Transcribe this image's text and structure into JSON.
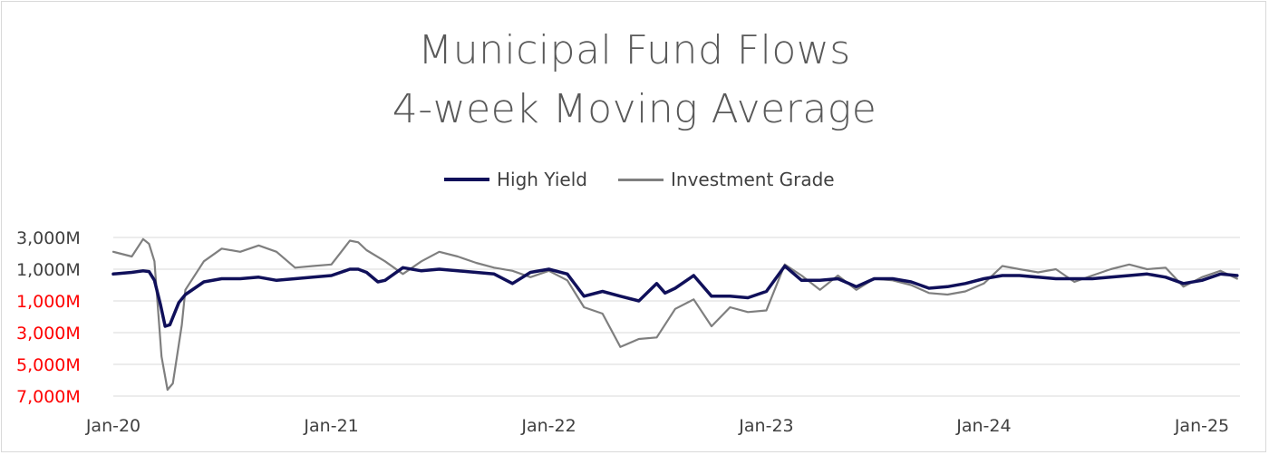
{
  "chart_data": {
    "type": "line",
    "title": "Municipal Fund Flows",
    "subtitle": "4-week Moving Average",
    "xlabel": "",
    "ylabel": "",
    "x_tick_labels": [
      "Jan-20",
      "Jan-21",
      "Jan-22",
      "Jan-23",
      "Jan-24",
      "Jan-25"
    ],
    "y_tick_labels": [
      "3,000M",
      "1,000M",
      "1,000M",
      "3,000M",
      "5,000M",
      "7,000M"
    ],
    "y_tick_values": [
      3000,
      1000,
      -1000,
      -3000,
      -5000,
      -7000
    ],
    "y_tick_negative_color": "#ff0000",
    "y_tick_positive_color": "#404040",
    "ylim": [
      -7000,
      3000
    ],
    "xlim": [
      "2020-01",
      "2025-03"
    ],
    "grid": "horizontal",
    "legend_position": "top-center",
    "series": [
      {
        "name": "High Yield",
        "color": "#10105a",
        "points": [
          [
            "2020-01",
            700
          ],
          [
            "2020-02",
            800
          ],
          [
            "2020-02-20",
            900
          ],
          [
            "2020-03-01",
            850
          ],
          [
            "2020-03-10",
            300
          ],
          [
            "2020-03-20",
            -1200
          ],
          [
            "2020-03-28",
            -2600
          ],
          [
            "2020-04-05",
            -2500
          ],
          [
            "2020-04-20",
            -1100
          ],
          [
            "2020-05",
            -600
          ],
          [
            "2020-06",
            200
          ],
          [
            "2020-07",
            400
          ],
          [
            "2020-08",
            400
          ],
          [
            "2020-09",
            500
          ],
          [
            "2020-10",
            300
          ],
          [
            "2020-11",
            400
          ],
          [
            "2020-12",
            500
          ],
          [
            "2021-01",
            600
          ],
          [
            "2021-02",
            1000
          ],
          [
            "2021-02-15",
            1000
          ],
          [
            "2021-03",
            800
          ],
          [
            "2021-03-20",
            200
          ],
          [
            "2021-04",
            300
          ],
          [
            "2021-05",
            1100
          ],
          [
            "2021-06",
            900
          ],
          [
            "2021-07",
            1000
          ],
          [
            "2021-08",
            900
          ],
          [
            "2021-09",
            800
          ],
          [
            "2021-10",
            700
          ],
          [
            "2021-11",
            100
          ],
          [
            "2021-12",
            800
          ],
          [
            "2022-01",
            1000
          ],
          [
            "2022-02",
            700
          ],
          [
            "2022-03",
            -700
          ],
          [
            "2022-04",
            -400
          ],
          [
            "2022-05",
            -700
          ],
          [
            "2022-06",
            -1000
          ],
          [
            "2022-07",
            100
          ],
          [
            "2022-07-15",
            -500
          ],
          [
            "2022-08",
            -200
          ],
          [
            "2022-09",
            600
          ],
          [
            "2022-10",
            -700
          ],
          [
            "2022-11",
            -700
          ],
          [
            "2022-12",
            -800
          ],
          [
            "2023-01",
            -400
          ],
          [
            "2023-02",
            1200
          ],
          [
            "2023-03",
            300
          ],
          [
            "2023-04",
            300
          ],
          [
            "2023-05",
            400
          ],
          [
            "2023-06",
            -100
          ],
          [
            "2023-07",
            400
          ],
          [
            "2023-08",
            400
          ],
          [
            "2023-09",
            200
          ],
          [
            "2023-10",
            -200
          ],
          [
            "2023-11",
            -100
          ],
          [
            "2023-12",
            100
          ],
          [
            "2024-01",
            400
          ],
          [
            "2024-02",
            600
          ],
          [
            "2024-03",
            600
          ],
          [
            "2024-04",
            500
          ],
          [
            "2024-05",
            400
          ],
          [
            "2024-06",
            400
          ],
          [
            "2024-07",
            400
          ],
          [
            "2024-08",
            500
          ],
          [
            "2024-09",
            600
          ],
          [
            "2024-10",
            700
          ],
          [
            "2024-11",
            500
          ],
          [
            "2024-12",
            100
          ],
          [
            "2025-01",
            300
          ],
          [
            "2025-02",
            700
          ],
          [
            "2025-03",
            600
          ]
        ]
      },
      {
        "name": "Investment Grade",
        "color": "#7f7f7f",
        "points": [
          [
            "2020-01",
            2100
          ],
          [
            "2020-02",
            1800
          ],
          [
            "2020-02-20",
            2900
          ],
          [
            "2020-03-01",
            2600
          ],
          [
            "2020-03-10",
            1500
          ],
          [
            "2020-03-22",
            -4500
          ],
          [
            "2020-04-01",
            -6600
          ],
          [
            "2020-04-10",
            -6200
          ],
          [
            "2020-04-25",
            -2500
          ],
          [
            "2020-05",
            -300
          ],
          [
            "2020-06",
            1500
          ],
          [
            "2020-07",
            2300
          ],
          [
            "2020-08",
            2100
          ],
          [
            "2020-09",
            2500
          ],
          [
            "2020-10",
            2100
          ],
          [
            "2020-11",
            1100
          ],
          [
            "2020-12",
            1200
          ],
          [
            "2021-01",
            1300
          ],
          [
            "2021-02",
            2800
          ],
          [
            "2021-02-15",
            2700
          ],
          [
            "2021-03",
            2200
          ],
          [
            "2021-04",
            1500
          ],
          [
            "2021-05",
            700
          ],
          [
            "2021-06",
            1500
          ],
          [
            "2021-07",
            2100
          ],
          [
            "2021-08",
            1800
          ],
          [
            "2021-09",
            1400
          ],
          [
            "2021-10",
            1100
          ],
          [
            "2021-11",
            900
          ],
          [
            "2021-12",
            500
          ],
          [
            "2022-01",
            900
          ],
          [
            "2022-02",
            300
          ],
          [
            "2022-03",
            -1400
          ],
          [
            "2022-04",
            -1800
          ],
          [
            "2022-05",
            -3900
          ],
          [
            "2022-06",
            -3400
          ],
          [
            "2022-07",
            -3300
          ],
          [
            "2022-08",
            -1500
          ],
          [
            "2022-09",
            -900
          ],
          [
            "2022-10",
            -2600
          ],
          [
            "2022-11",
            -1400
          ],
          [
            "2022-12",
            -1700
          ],
          [
            "2023-01",
            -1600
          ],
          [
            "2023-02",
            1300
          ],
          [
            "2023-03",
            600
          ],
          [
            "2023-04",
            -300
          ],
          [
            "2023-05",
            600
          ],
          [
            "2023-06",
            -300
          ],
          [
            "2023-07",
            400
          ],
          [
            "2023-08",
            300
          ],
          [
            "2023-09",
            0
          ],
          [
            "2023-10",
            -500
          ],
          [
            "2023-11",
            -600
          ],
          [
            "2023-12",
            -400
          ],
          [
            "2024-01",
            100
          ],
          [
            "2024-02",
            1200
          ],
          [
            "2024-03",
            1000
          ],
          [
            "2024-04",
            800
          ],
          [
            "2024-05",
            1000
          ],
          [
            "2024-06",
            200
          ],
          [
            "2024-07",
            600
          ],
          [
            "2024-08",
            1000
          ],
          [
            "2024-09",
            1300
          ],
          [
            "2024-10",
            1000
          ],
          [
            "2024-11",
            1100
          ],
          [
            "2024-12",
            -100
          ],
          [
            "2025-01",
            500
          ],
          [
            "2025-02",
            900
          ],
          [
            "2025-03",
            400
          ]
        ]
      }
    ]
  }
}
